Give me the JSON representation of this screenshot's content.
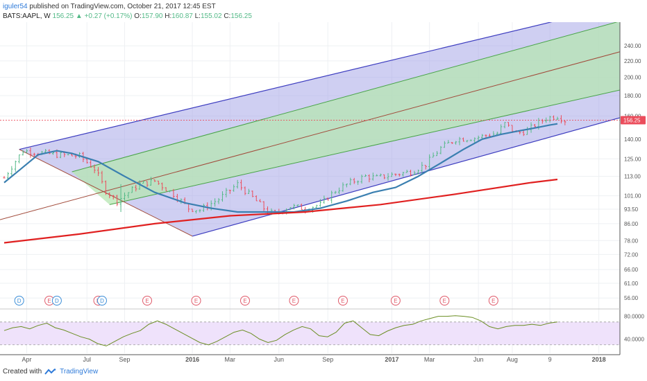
{
  "header": {
    "user": "iguler54",
    "published": " published on TradingView.com, October 21, 2017 12:45 EST",
    "symbol": "BATS:AAPL, W",
    "last": "156.25",
    "change": "+0.27 (+0.17%)",
    "o_label": "O:",
    "o_val": "157.90",
    "h_label": "H:",
    "h_val": "160.87",
    "l_label": "L:",
    "l_val": "155.02",
    "c_label": "C:",
    "c_val": "156.25"
  },
  "footer": {
    "created": "Created with",
    "brand": "TradingView"
  },
  "colors": {
    "up": "#53b987",
    "down": "#eb4d5c",
    "ma_blue": "#3a7fb0",
    "ma_red": "#e02020",
    "channel_blue": "#3c3cbf",
    "channel_green": "#47a347",
    "channel_mid": "#a14a3a",
    "rsi_line": "#6b8e23",
    "rsi_bg": "#efe2fb"
  },
  "chart_data": {
    "type": "candlestick",
    "symbol": "BATS:AAPL",
    "interval": "W",
    "price_axis_ticks": [
      "240.00",
      "220.00",
      "200.00",
      "180.00",
      "160.00",
      "140.00",
      "125.00",
      "113.00",
      "101.00",
      "93.50",
      "86.00",
      "78.00",
      "72.00",
      "66.00",
      "61.00",
      "56.00"
    ],
    "price_scale": "log",
    "ylim": [
      53,
      275
    ],
    "last_price_label": "156.25",
    "x_ticks": [
      "Apr",
      "Jul",
      "Sep",
      "2016",
      "Mar",
      "Jun",
      "Sep",
      "2017",
      "Mar",
      "Jun",
      "Aug",
      "9",
      "2018"
    ],
    "moving_averages": [
      {
        "color": "blue",
        "points": [
          [
            0,
            109
          ],
          [
            4,
            117
          ],
          [
            9,
            128
          ],
          [
            14,
            131
          ],
          [
            18,
            129
          ],
          [
            25,
            123
          ],
          [
            32,
            113
          ],
          [
            40,
            103
          ],
          [
            48,
            97
          ],
          [
            55,
            94
          ],
          [
            62,
            92
          ],
          [
            69,
            92
          ],
          [
            77,
            92
          ],
          [
            84,
            94
          ],
          [
            91,
            98
          ],
          [
            98,
            103
          ],
          [
            104,
            106
          ],
          [
            110,
            113
          ],
          [
            116,
            122
          ],
          [
            122,
            132
          ],
          [
            127,
            140
          ],
          [
            132,
            144
          ],
          [
            137,
            147
          ],
          [
            142,
            150
          ],
          [
            145,
            152
          ],
          [
            147,
            153
          ]
        ]
      },
      {
        "color": "red",
        "points": [
          [
            0,
            77
          ],
          [
            20,
            81
          ],
          [
            40,
            86
          ],
          [
            60,
            90
          ],
          [
            80,
            92
          ],
          [
            100,
            96
          ],
          [
            120,
            102
          ],
          [
            140,
            109
          ],
          [
            147,
            111
          ]
        ]
      }
    ],
    "pitchfork": {
      "pivot": [
        4,
        132
      ],
      "a": [
        50,
        80
      ],
      "b": [
        150,
        175
      ],
      "median_end": [
        150,
        214
      ],
      "upper_end": [
        150,
        282
      ],
      "lower_end": [
        150,
        146
      ],
      "upper_green_end": [
        150,
        255
      ],
      "lower_green_end": [
        150,
        174
      ]
    },
    "event_markers": [
      {
        "x": 4,
        "label": "D",
        "type": "dividend"
      },
      {
        "x": 12,
        "label": "E",
        "type": "earnings"
      },
      {
        "x": 14,
        "label": "D",
        "type": "dividend"
      },
      {
        "x": 25,
        "label": "E",
        "type": "earnings"
      },
      {
        "x": 26,
        "label": "D",
        "type": "dividend"
      },
      {
        "x": 38,
        "label": "E",
        "type": "earnings"
      },
      {
        "x": 51,
        "label": "E",
        "type": "earnings"
      },
      {
        "x": 64,
        "label": "E",
        "type": "earnings"
      },
      {
        "x": 77,
        "label": "E",
        "type": "earnings"
      },
      {
        "x": 90,
        "label": "E",
        "type": "earnings"
      },
      {
        "x": 104,
        "label": "E",
        "type": "earnings"
      },
      {
        "x": 117,
        "label": "E",
        "type": "earnings"
      },
      {
        "x": 130,
        "label": "E",
        "type": "earnings"
      }
    ],
    "rsi": {
      "levels": [
        "80.0000",
        "40.0000"
      ],
      "band": [
        30,
        70
      ],
      "ylim": [
        20,
        88
      ],
      "values": [
        55,
        60,
        62,
        58,
        64,
        68,
        60,
        56,
        50,
        44,
        40,
        32,
        28,
        36,
        44,
        50,
        55,
        66,
        72,
        66,
        58,
        50,
        42,
        34,
        30,
        36,
        44,
        52,
        56,
        50,
        40,
        34,
        38,
        48,
        56,
        62,
        58,
        46,
        44,
        52,
        68,
        72,
        60,
        48,
        46,
        54,
        60,
        64,
        66,
        72,
        76,
        80,
        80,
        81,
        80,
        78,
        72,
        62,
        58,
        62,
        64,
        64,
        66,
        64,
        68,
        70
      ]
    }
  }
}
